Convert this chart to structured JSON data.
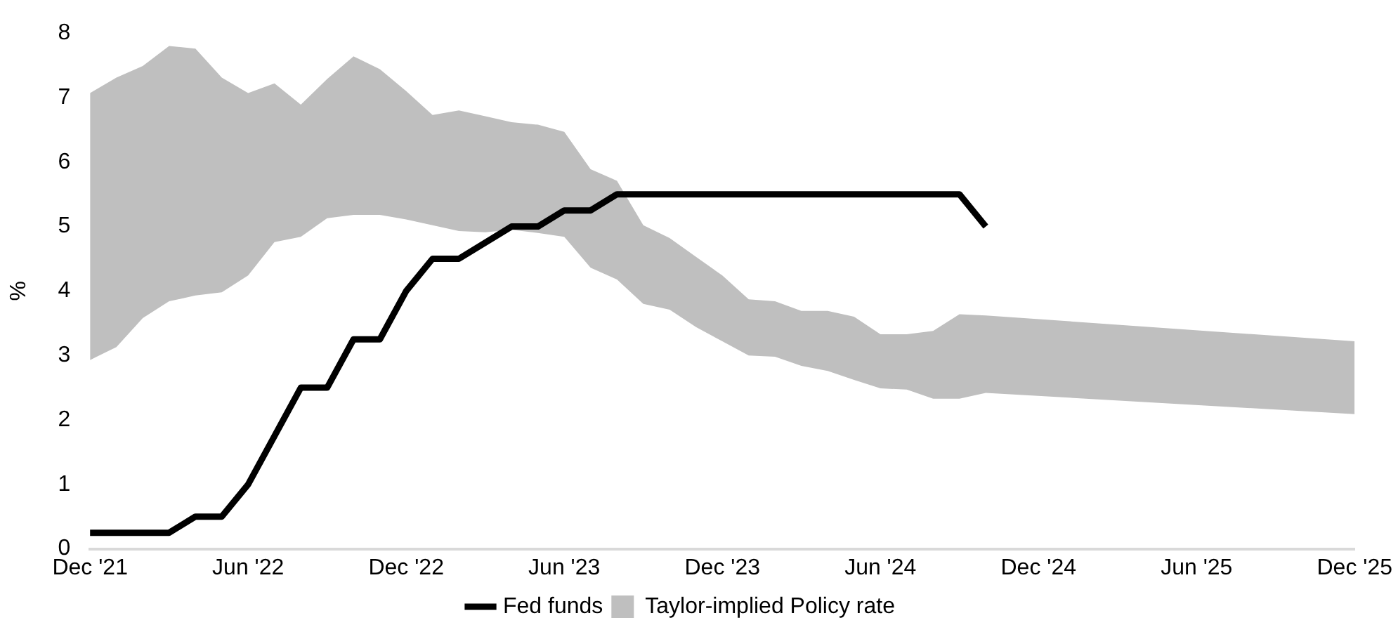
{
  "chart_data": {
    "type": "line",
    "ylabel": "%",
    "legend": "bottom",
    "categories": [
      "Dec '21",
      null,
      null,
      null,
      null,
      null,
      "Jun '22",
      null,
      null,
      null,
      null,
      null,
      "Dec '22",
      null,
      null,
      null,
      null,
      null,
      "Jun '23",
      null,
      null,
      null,
      null,
      null,
      "Dec '23",
      null,
      null,
      null,
      null,
      null,
      "Jun '24",
      null,
      null,
      null,
      null,
      null,
      "Dec '24",
      null,
      null,
      null,
      null,
      null,
      "Jun '25",
      null,
      null,
      null,
      null,
      null,
      "Dec '25"
    ],
    "ylim": [
      0,
      8
    ],
    "yticks": [
      0,
      1,
      2,
      3,
      4,
      5,
      6,
      7,
      8
    ],
    "series": [
      {
        "type": "area",
        "name": "Taylor-implied Policy rate",
        "color": "#bfbfbf",
        "values": [
          null,
          null,
          null,
          null,
          null,
          null,
          null,
          null,
          null,
          null,
          null,
          null,
          null,
          null,
          null,
          null,
          null,
          null,
          null,
          null,
          null,
          null,
          null,
          null,
          null,
          null,
          null,
          null,
          null,
          null,
          null,
          null,
          null,
          null,
          null,
          null,
          null,
          null,
          null,
          null,
          null,
          null,
          null,
          null,
          null,
          null,
          null,
          null,
          null
        ],
        "lower": [
          2.93,
          3.13,
          3.58,
          3.84,
          3.93,
          3.98,
          4.24,
          4.76,
          4.84,
          5.13,
          5.18,
          5.18,
          5.11,
          5.02,
          4.93,
          4.91,
          4.95,
          4.9,
          4.84,
          4.36,
          4.18,
          3.8,
          3.71,
          3.44,
          3.22,
          3.0,
          2.98,
          2.84,
          2.76,
          2.62,
          2.49,
          2.47,
          2.33,
          2.33,
          2.42,
          null,
          null,
          null,
          null,
          null,
          null,
          null,
          null,
          null,
          null,
          null,
          null,
          null,
          2.09
        ],
        "upper": [
          7.07,
          7.31,
          7.49,
          7.8,
          7.76,
          7.31,
          7.07,
          7.22,
          6.89,
          7.29,
          7.64,
          7.44,
          7.1,
          6.73,
          6.8,
          6.71,
          6.62,
          6.58,
          6.47,
          5.89,
          5.71,
          5.02,
          4.82,
          4.53,
          4.24,
          3.87,
          3.84,
          3.69,
          3.69,
          3.6,
          3.33,
          3.33,
          3.38,
          3.64,
          3.62,
          null,
          null,
          null,
          null,
          null,
          null,
          null,
          null,
          null,
          null,
          null,
          null,
          null,
          3.22
        ]
      },
      {
        "name": "Fed funds",
        "color": "#000000",
        "values": [
          0.25,
          null,
          null,
          0.25,
          0.5,
          0.5,
          1,
          null,
          2.5,
          2.5,
          3.25,
          3.25,
          4,
          4.5,
          4.5,
          null,
          5,
          5,
          5.25,
          5.25,
          5.5,
          null,
          null,
          null,
          null,
          null,
          null,
          null,
          null,
          null,
          null,
          null,
          null,
          5.5,
          5,
          null,
          null,
          null,
          null,
          null,
          null,
          null,
          null,
          null,
          null,
          null,
          null,
          null,
          null
        ]
      }
    ]
  }
}
